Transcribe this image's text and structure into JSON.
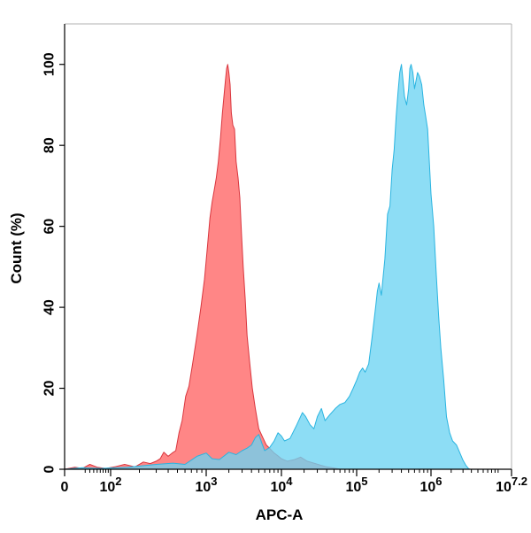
{
  "chart_data": {
    "type": "area",
    "xlabel": "APC-A",
    "ylabel": "Count  (%)",
    "x_scale": "biexponential-log",
    "xlim": [
      0,
      15848932
    ],
    "ylim": [
      0,
      110
    ],
    "y_ticks": [
      0,
      20,
      40,
      60,
      80,
      100
    ],
    "x_ticks": [
      {
        "value": 0,
        "base": "0",
        "exp": ""
      },
      {
        "value": 100,
        "base": "10",
        "exp": "2"
      },
      {
        "value": 1000,
        "base": "10",
        "exp": "3"
      },
      {
        "value": 10000,
        "base": "10",
        "exp": "4"
      },
      {
        "value": 100000,
        "base": "10",
        "exp": "5"
      },
      {
        "value": 1000000,
        "base": "10",
        "exp": "6"
      },
      {
        "value": 15848932,
        "base": "10",
        "exp": "7.2"
      }
    ],
    "grid": false,
    "series": [
      {
        "color": "#ff6b6b",
        "stroke": "#d9363e",
        "points": [
          [
            0,
            0
          ],
          [
            5,
            0.5
          ],
          [
            15,
            0.2
          ],
          [
            30,
            1.2
          ],
          [
            50,
            0.5
          ],
          [
            80,
            0.2
          ],
          [
            110,
            0.6
          ],
          [
            140,
            1.2
          ],
          [
            180,
            0.6
          ],
          [
            220,
            1.8
          ],
          [
            260,
            1.4
          ],
          [
            300,
            2.0
          ],
          [
            330,
            2.6
          ],
          [
            360,
            4.2
          ],
          [
            400,
            3.2
          ],
          [
            440,
            4.0
          ],
          [
            480,
            4.6
          ],
          [
            520,
            9.0
          ],
          [
            560,
            12.0
          ],
          [
            610,
            18.0
          ],
          [
            660,
            20.5
          ],
          [
            720,
            26.0
          ],
          [
            800,
            33.0
          ],
          [
            880,
            40.0
          ],
          [
            960,
            47.0
          ],
          [
            1040,
            55.0
          ],
          [
            1120,
            62.0
          ],
          [
            1200,
            66.0
          ],
          [
            1280,
            69.0
          ],
          [
            1360,
            72.0
          ],
          [
            1450,
            76.0
          ],
          [
            1550,
            82.0
          ],
          [
            1640,
            88.0
          ],
          [
            1720,
            92.0
          ],
          [
            1800,
            96.0
          ],
          [
            1870,
            99.0
          ],
          [
            1930,
            100.0
          ],
          [
            2000,
            98.0
          ],
          [
            2080,
            95.0
          ],
          [
            2160,
            88.0
          ],
          [
            2260,
            85.0
          ],
          [
            2380,
            84.0
          ],
          [
            2500,
            76.0
          ],
          [
            2650,
            72.0
          ],
          [
            2800,
            67.0
          ],
          [
            2950,
            58.0
          ],
          [
            3100,
            50.0
          ],
          [
            3300,
            42.0
          ],
          [
            3500,
            33.0
          ],
          [
            3800,
            26.0
          ],
          [
            4100,
            20.0
          ],
          [
            4500,
            15.0
          ],
          [
            5000,
            10.0
          ],
          [
            5600,
            8.0
          ],
          [
            6300,
            6.0
          ],
          [
            7100,
            5.0
          ],
          [
            8000,
            4.0
          ],
          [
            9000,
            3.3
          ],
          [
            10000,
            2.6
          ],
          [
            12000,
            2.0
          ],
          [
            15000,
            2.4
          ],
          [
            18000,
            3.0
          ],
          [
            22000,
            2.0
          ],
          [
            27000,
            1.5
          ],
          [
            33000,
            1.0
          ],
          [
            40000,
            0.6
          ],
          [
            50000,
            0.3
          ],
          [
            60000,
            0.0
          ]
        ]
      },
      {
        "color": "#6dd3f2",
        "stroke": "#2ab4e0",
        "points": [
          [
            0,
            0
          ],
          [
            15,
            0.4
          ],
          [
            60,
            0.2
          ],
          [
            150,
            0.5
          ],
          [
            300,
            1.2
          ],
          [
            450,
            1.5
          ],
          [
            600,
            1.2
          ],
          [
            800,
            3.2
          ],
          [
            1000,
            4.0
          ],
          [
            1200,
            2.6
          ],
          [
            1500,
            2.4
          ],
          [
            2000,
            4.2
          ],
          [
            2500,
            3.6
          ],
          [
            3000,
            4.6
          ],
          [
            3500,
            5.2
          ],
          [
            4000,
            6.0
          ],
          [
            4500,
            7.8
          ],
          [
            5000,
            8.6
          ],
          [
            5500,
            6.4
          ],
          [
            6000,
            4.6
          ],
          [
            7000,
            5.4
          ],
          [
            8000,
            7.0
          ],
          [
            9000,
            9.0
          ],
          [
            10000,
            8.2
          ],
          [
            11000,
            7.0
          ],
          [
            13000,
            7.6
          ],
          [
            16000,
            11.0
          ],
          [
            19000,
            14.0
          ],
          [
            21000,
            13.0
          ],
          [
            24000,
            11.0
          ],
          [
            27000,
            10.0
          ],
          [
            30000,
            13.0
          ],
          [
            34000,
            15.0
          ],
          [
            38000,
            12.0
          ],
          [
            44000,
            13.5
          ],
          [
            52000,
            15.0
          ],
          [
            60000,
            16.0
          ],
          [
            70000,
            16.5
          ],
          [
            80000,
            18.0
          ],
          [
            90000,
            20.0
          ],
          [
            100000,
            22.0
          ],
          [
            110000,
            24.0
          ],
          [
            120000,
            25.0
          ],
          [
            130000,
            24.0
          ],
          [
            145000,
            26.0
          ],
          [
            160000,
            32.0
          ],
          [
            180000,
            40.0
          ],
          [
            190000,
            44.0
          ],
          [
            200000,
            46.0
          ],
          [
            215000,
            43.0
          ],
          [
            240000,
            52.0
          ],
          [
            260000,
            63.0
          ],
          [
            280000,
            65.0
          ],
          [
            300000,
            74.0
          ],
          [
            320000,
            79.0
          ],
          [
            340000,
            87.0
          ],
          [
            360000,
            93.0
          ],
          [
            380000,
            98.0
          ],
          [
            400000,
            100.0
          ],
          [
            420000,
            96.0
          ],
          [
            440000,
            92.0
          ],
          [
            470000,
            90.0
          ],
          [
            500000,
            94.0
          ],
          [
            520000,
            99.0
          ],
          [
            540000,
            100.0
          ],
          [
            570000,
            98.0
          ],
          [
            600000,
            94.0
          ],
          [
            630000,
            96.0
          ],
          [
            660000,
            98.0
          ],
          [
            700000,
            97.0
          ],
          [
            750000,
            95.0
          ],
          [
            800000,
            90.0
          ],
          [
            850000,
            87.0
          ],
          [
            900000,
            84.0
          ],
          [
            950000,
            76.0
          ],
          [
            1000000,
            68.0
          ],
          [
            1100000,
            60.0
          ],
          [
            1200000,
            48.0
          ],
          [
            1300000,
            38.0
          ],
          [
            1400000,
            30.0
          ],
          [
            1550000,
            22.0
          ],
          [
            1700000,
            13.0
          ],
          [
            1900000,
            9.0
          ],
          [
            2100000,
            7.0
          ],
          [
            2400000,
            6.0
          ],
          [
            2700000,
            4.0
          ],
          [
            3000000,
            2.2
          ],
          [
            3300000,
            1.0
          ],
          [
            3600000,
            0.2
          ],
          [
            3800000,
            0.0
          ]
        ]
      }
    ]
  }
}
